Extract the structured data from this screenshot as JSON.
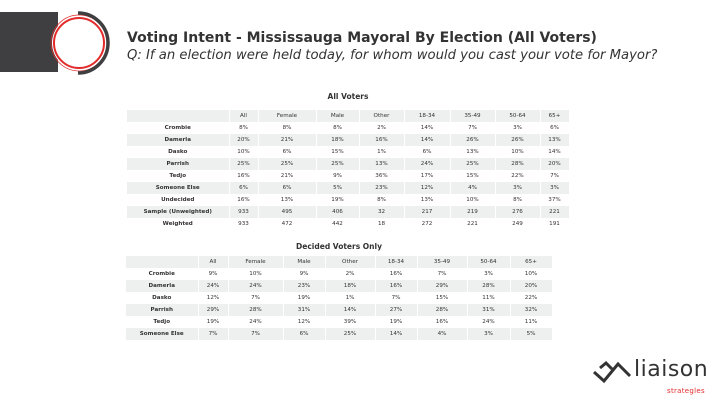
{
  "header": {
    "title": "Voting Intent - Mississauga Mayoral By Election (All Voters)",
    "question": "Q:  If an election were held today, for whom would you cast your vote for Mayor?"
  },
  "colors": {
    "accent": "#e32b2b",
    "dark": "#3f3f41",
    "row_alt": "#eeefef"
  },
  "columns": [
    "",
    "All",
    "Female",
    "Male",
    "Other",
    "18-34",
    "35-49",
    "50-64",
    "65+"
  ],
  "all_voters": {
    "title": "All Voters",
    "rows": [
      [
        "Crombie",
        "8%",
        "8%",
        "8%",
        "2%",
        "14%",
        "7%",
        "3%",
        "6%"
      ],
      [
        "Damerla",
        "20%",
        "21%",
        "18%",
        "16%",
        "14%",
        "26%",
        "26%",
        "13%"
      ],
      [
        "Dasko",
        "10%",
        "6%",
        "15%",
        "1%",
        "6%",
        "13%",
        "10%",
        "14%"
      ],
      [
        "Parrish",
        "25%",
        "25%",
        "25%",
        "13%",
        "24%",
        "25%",
        "28%",
        "20%"
      ],
      [
        "Tedjo",
        "16%",
        "21%",
        "9%",
        "36%",
        "17%",
        "15%",
        "22%",
        "7%"
      ],
      [
        "Someone Else",
        "6%",
        "6%",
        "5%",
        "23%",
        "12%",
        "4%",
        "3%",
        "3%"
      ],
      [
        "Undecided",
        "16%",
        "13%",
        "19%",
        "8%",
        "13%",
        "10%",
        "8%",
        "37%"
      ],
      [
        "Sample (Unweighted)",
        "933",
        "495",
        "406",
        "32",
        "217",
        "219",
        "276",
        "221"
      ],
      [
        "Weighted",
        "933",
        "472",
        "442",
        "18",
        "272",
        "221",
        "249",
        "191"
      ]
    ]
  },
  "decided_voters": {
    "title": "Decided Voters Only",
    "rows": [
      [
        "Crombie",
        "9%",
        "10%",
        "9%",
        "2%",
        "16%",
        "7%",
        "3%",
        "10%"
      ],
      [
        "Damerla",
        "24%",
        "24%",
        "23%",
        "18%",
        "16%",
        "29%",
        "28%",
        "20%"
      ],
      [
        "Dasko",
        "12%",
        "7%",
        "19%",
        "1%",
        "7%",
        "15%",
        "11%",
        "22%"
      ],
      [
        "Parrish",
        "29%",
        "28%",
        "31%",
        "14%",
        "27%",
        "28%",
        "31%",
        "32%"
      ],
      [
        "Tedjo",
        "19%",
        "24%",
        "12%",
        "39%",
        "19%",
        "16%",
        "24%",
        "11%"
      ],
      [
        "Someone Else",
        "7%",
        "7%",
        "6%",
        "25%",
        "14%",
        "4%",
        "3%",
        "5%"
      ]
    ]
  },
  "logo": {
    "name": "liaison",
    "tagline": "strategles"
  }
}
